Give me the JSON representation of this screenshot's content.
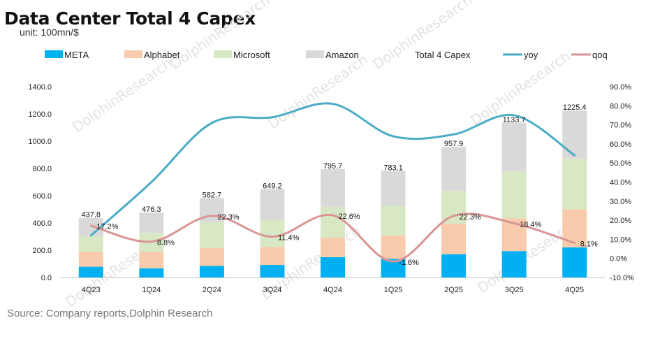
{
  "title": "Data Center Total 4 Capex",
  "subtitle": "unit: 100mn/$",
  "source": "Source: Company reports,Dolphin Research",
  "watermark": "DolphinResearch",
  "chart_data": {
    "type": "bar",
    "stacked": true,
    "categories": [
      "4Q23",
      "1Q24",
      "2Q24",
      "3Q24",
      "4Q24",
      "1Q25",
      "2Q25",
      "3Q25",
      "4Q25"
    ],
    "series": [
      {
        "name": "META",
        "color": "#00b0f0",
        "values": [
          79,
          67,
          85,
          92,
          149,
          137,
          171,
          194,
          221
        ]
      },
      {
        "name": "Alphabet",
        "color": "#f8cbad",
        "values": [
          110,
          120,
          132,
          131,
          143,
          172,
          224,
          240,
          279
        ]
      },
      {
        "name": "Microsoft",
        "color": "#d9e8c4",
        "values": [
          115,
          140,
          190,
          200,
          226,
          214,
          242,
          345,
          373
        ]
      },
      {
        "name": "Amazon",
        "color": "#d9d9d9",
        "values": [
          133.8,
          149.3,
          175.7,
          226.2,
          277.7,
          260.1,
          320.9,
          354.7,
          352.4
        ]
      }
    ],
    "totals": {
      "name": "Total 4 Capex",
      "values": [
        437.8,
        476.3,
        582.7,
        649.2,
        795.7,
        783.1,
        957.9,
        1133.7,
        1225.4
      ],
      "labels": [
        "437.8",
        "476.3",
        "582.7",
        "649.2",
        "795.7",
        "783.1",
        "957.9",
        "1133.7",
        "1225.4"
      ]
    },
    "lines": [
      {
        "name": "yoy",
        "color": "#4bacc6",
        "axis": "right",
        "values": [
          12.0,
          40.0,
          71.0,
          74.0,
          81.0,
          64.0,
          65.0,
          75.0,
          54.0
        ]
      },
      {
        "name": "qoq",
        "color": "#d99594",
        "axis": "right",
        "values": [
          17.2,
          8.8,
          22.3,
          11.4,
          22.6,
          -1.6,
          22.3,
          18.4,
          8.1
        ],
        "labels": [
          "17.2%",
          "8.8%",
          "22.3%",
          "11.4%",
          "22.6%",
          "-1.6%",
          "22.3%",
          "18.4%",
          "8.1%"
        ]
      }
    ],
    "y_left": {
      "min": 0,
      "max": 1400,
      "ticks": [
        "0.0",
        "200.0",
        "400.0",
        "600.0",
        "800.0",
        "1000.0",
        "1200.0",
        "1400.0"
      ]
    },
    "y_right": {
      "min": -10,
      "max": 90,
      "ticks": [
        "-10.0%",
        "0.0%",
        "10.0%",
        "20.0%",
        "30.0%",
        "40.0%",
        "50.0%",
        "60.0%",
        "70.0%",
        "80.0%",
        "90.0%"
      ]
    },
    "legend": {
      "placement": "top",
      "items": [
        {
          "label": "META",
          "kind": "box",
          "color": "#00b0f0"
        },
        {
          "label": "Alphabet",
          "kind": "box",
          "color": "#f8cbad"
        },
        {
          "label": "Microsoft",
          "kind": "box",
          "color": "#d9e8c4"
        },
        {
          "label": "Amazon",
          "kind": "box",
          "color": "#d9d9d9"
        },
        {
          "label": "Total 4 Capex",
          "kind": "none",
          "color": "#ffffff"
        },
        {
          "label": "yoy",
          "kind": "line",
          "color": "#4bacc6"
        },
        {
          "label": "qoq",
          "kind": "line",
          "color": "#d99594"
        }
      ]
    },
    "grid": false
  }
}
